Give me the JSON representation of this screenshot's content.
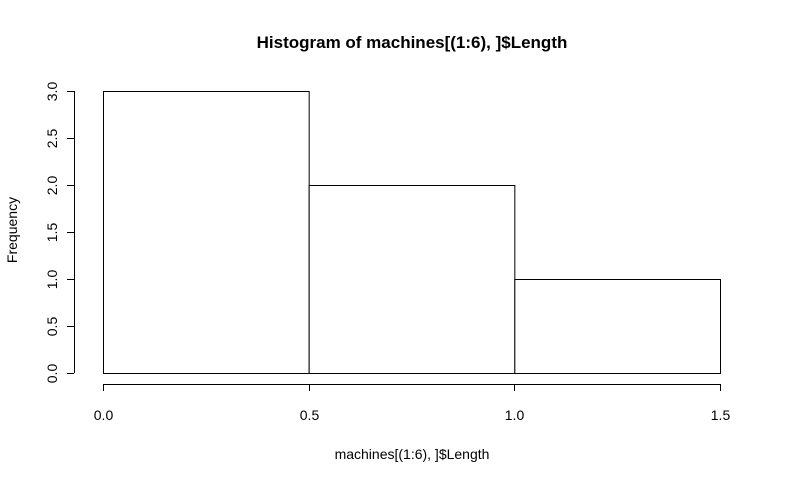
{
  "chart_data": {
    "type": "bar",
    "title": "Histogram of machines[(1:6), ]$Length",
    "xlabel": "machines[(1:6), ]$Length",
    "ylabel": "Frequency",
    "bins": [
      {
        "x0": 0.0,
        "x1": 0.5,
        "count": 3
      },
      {
        "x0": 0.5,
        "x1": 1.0,
        "count": 2
      },
      {
        "x0": 1.0,
        "x1": 1.5,
        "count": 1
      }
    ],
    "xlim": [
      0.0,
      1.5
    ],
    "ylim": [
      0.0,
      3.0
    ],
    "x_ticks": [
      "0.0",
      "0.5",
      "1.0",
      "1.5"
    ],
    "y_ticks": [
      "0.0",
      "0.5",
      "1.0",
      "1.5",
      "2.0",
      "2.5",
      "3.0"
    ],
    "grid": false,
    "bar_fill": "#ffffff",
    "bar_stroke": "#000000"
  }
}
